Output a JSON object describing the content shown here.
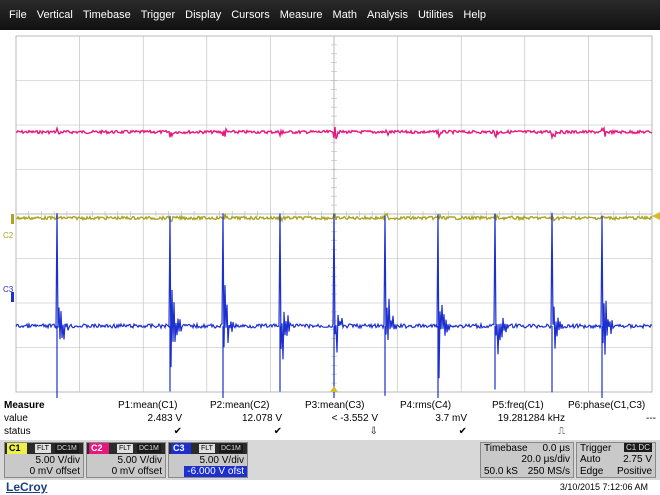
{
  "menu": [
    "File",
    "Vertical",
    "Timebase",
    "Trigger",
    "Display",
    "Cursors",
    "Measure",
    "Math",
    "Analysis",
    "Utilities",
    "Help"
  ],
  "colors": {
    "c1": "#e8177e",
    "c2": "#a9a422",
    "c3": "#1c2fcf",
    "c1_box": "#eef04a",
    "c2_box": "#e8177e",
    "c3_box": "#1c2fcf",
    "grid": "#b9b9b9",
    "trigger_marker": "#d8b92a"
  },
  "traces": {
    "c2_label": "C2",
    "c3_label": "C3"
  },
  "measure": {
    "title": "Measure",
    "row_value": "value",
    "row_status": "status",
    "params": [
      {
        "name": "P1:mean(C1)",
        "value": "2.483 V",
        "status": "check"
      },
      {
        "name": "P2:mean(C2)",
        "value": "12.078 V",
        "status": "check"
      },
      {
        "name": "P3:mean(C3)",
        "value": "< -3.552 V",
        "status": "arrow-down"
      },
      {
        "name": "P4:rms(C4)",
        "value": "3.7 mV",
        "status": "check"
      },
      {
        "name": "P5:freq(C1)",
        "value": "19.281284 kHz",
        "status": "pulse"
      },
      {
        "name": "P6:phase(C1,C3)",
        "value": "---",
        "status": ""
      }
    ]
  },
  "channels": [
    {
      "name": "C1",
      "tags": [
        "FLT",
        "DC1M"
      ],
      "vdiv": "5.00 V/div",
      "offset": "0 mV offset",
      "highlight": false
    },
    {
      "name": "C2",
      "tags": [
        "FLT",
        "DC1M"
      ],
      "vdiv": "5.00 V/div",
      "offset": "0 mV offset",
      "highlight": false
    },
    {
      "name": "C3",
      "tags": [
        "FLT",
        "DC1M"
      ],
      "vdiv": "5.00 V/div",
      "offset": "-6.000 V ofst",
      "highlight": true
    }
  ],
  "timebase": {
    "title": "Timebase",
    "delay": "0.0 μs",
    "tdiv": "20.0 μs/div",
    "samples": "50.0 kS",
    "rate": "250 MS/s"
  },
  "trigger": {
    "title": "Trigger",
    "tag": "C1 DC",
    "mode": "Auto",
    "level": "2.75 V",
    "type": "Edge",
    "slope": "Positive"
  },
  "footer": {
    "logo": "LeCroy",
    "datetime": "3/10/2015 7:12:06 AM"
  },
  "icons": {
    "check": "check-icon",
    "arrow-down": "double-arrow-down-icon",
    "pulse": "pulse-icon"
  }
}
